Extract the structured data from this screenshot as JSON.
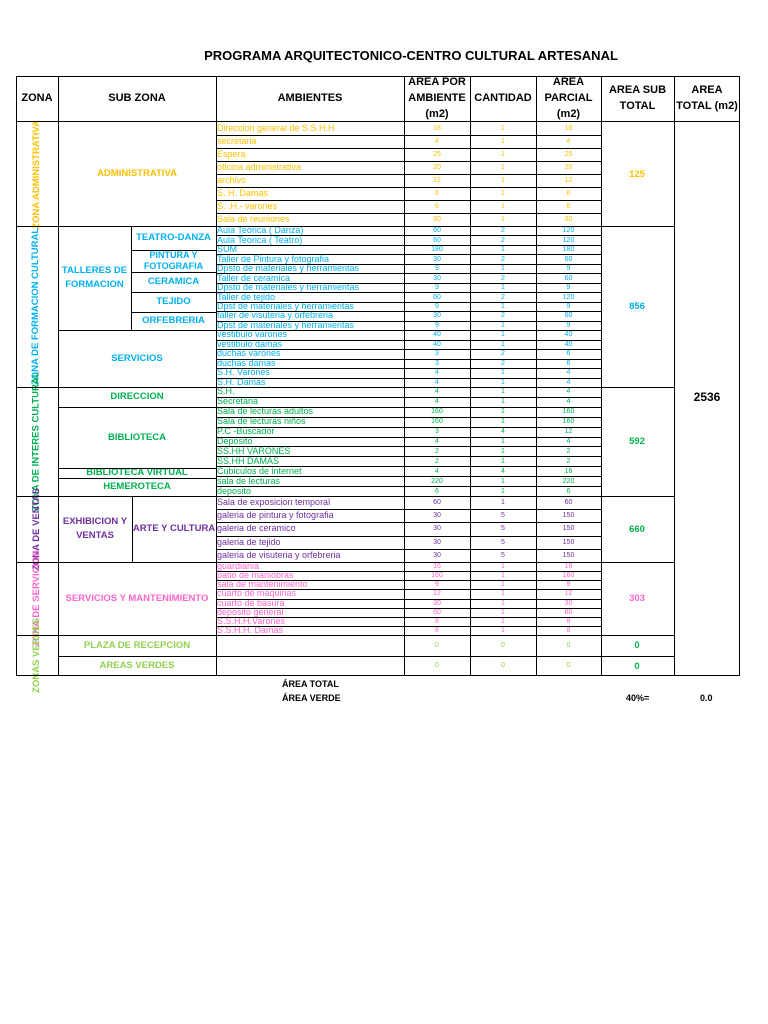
{
  "title": "PROGRAMA ARQUITECTONICO-CENTRO CULTURAL ARTESANAL",
  "headers": {
    "zona": "ZONA",
    "sub_zona": "SUB ZONA",
    "ambientes": "AMBIENTES",
    "area_por_ambiente": "AREA POR AMBIENTE (m2)",
    "cantidad": "CANTIDAD",
    "area_parcial": "AREA PARCIAL (m2)",
    "area_sub_total": "AREA SUB TOTAL",
    "area_total": "AREA TOTAL (m2)"
  },
  "zones": [
    {
      "label": "ZONA ADMINISTRATIVA",
      "color": "#ffc000",
      "subzones": [
        {
          "label": "ADMINISTRATIVA",
          "rows": 8
        }
      ],
      "subtotal": "125",
      "rows": [
        [
          "Direccion general de S.S.H.H",
          "18",
          "1",
          "18"
        ],
        [
          "secretaria",
          "4",
          "1",
          "4"
        ],
        [
          "Espera",
          "25",
          "1",
          "25"
        ],
        [
          " oficina administrativa",
          "20",
          "1",
          "20"
        ],
        [
          "archivo",
          "12",
          "1",
          "12"
        ],
        [
          "S. H. Damas",
          "6",
          "1",
          "6"
        ],
        [
          "S. .H.- varones",
          "6",
          "1",
          "6"
        ],
        [
          "Sala de reuniones",
          "30",
          "1",
          "30"
        ]
      ]
    },
    {
      "label": "ZONA DE FORMACION CULTURAL",
      "color": "#00b0f0",
      "subzones": [],
      "subtotal": "856",
      "rows": [
        [
          "Aula Teorica ( Danza)",
          "60",
          "2",
          "120"
        ],
        [
          "Aula Teorica ( Teatro)",
          "60",
          "2",
          "120"
        ],
        [
          "SUM",
          "180",
          "1",
          "180"
        ],
        [
          "Taller de Pintura y fotografia",
          "30",
          "2",
          "60"
        ],
        [
          "Dpsto de materiales y herramientas",
          "9",
          "1",
          "9"
        ],
        [
          "Taller de ceramica",
          "30",
          "2",
          "60"
        ],
        [
          "Dpsto de materiales y herramientas",
          "9",
          "1",
          "9"
        ],
        [
          "Taller de tejido",
          "60",
          "2",
          "120"
        ],
        [
          "Dpst de materiales y herramientas",
          "9",
          "1",
          "9"
        ],
        [
          "taller de visuteria y orfebreria",
          "30",
          "2",
          "60"
        ],
        [
          "Dpst de materiales y herramientas",
          "9",
          "1",
          "9"
        ],
        [
          "vestibulo varones",
          "40",
          "1",
          "40"
        ],
        [
          "vestibulo damas",
          "40",
          "1",
          "40"
        ],
        [
          "duchas  varones",
          "3",
          "2",
          "6"
        ],
        [
          "duchas damas",
          "3",
          "2",
          "6"
        ],
        [
          "S.H. Varones",
          "4",
          "1",
          "4"
        ],
        [
          "S.H. Damas",
          "4",
          "1",
          "4"
        ]
      ]
    },
    {
      "label": "ZONA DE INTERES CULTURAL",
      "color": "#00b050",
      "subzones": [],
      "subtotal": "592",
      "rows": [
        [
          " S.H.",
          "4",
          "1",
          "4"
        ],
        [
          "Secretaria",
          "4",
          "1",
          "4"
        ],
        [
          "Sala de lecturas adultos",
          "160",
          "1",
          "160"
        ],
        [
          "Sala de lecturas niños",
          "160",
          "1",
          "160"
        ],
        [
          "P.C -Buscador",
          "3",
          "4",
          "12"
        ],
        [
          "Deposito",
          "4",
          "1",
          "4"
        ],
        [
          "SS.HH VARONES",
          "2",
          "1",
          "2"
        ],
        [
          "SS.HH DAMAS",
          "2",
          "1",
          "2"
        ],
        [
          "Cubiculos de internet",
          "4",
          "4",
          "16"
        ],
        [
          "sala de lecturas",
          "220",
          "1",
          "220"
        ],
        [
          "deposito",
          "6",
          "1",
          "6"
        ]
      ]
    },
    {
      "label": "ZONA DE VENTAS",
      "color": "#7030a0",
      "subzones": [],
      "subtotal": "660",
      "rows": [
        [
          "Sala de exposicion temporal",
          "60",
          "1",
          "60"
        ],
        [
          "galeria de pintura y fotografia",
          "30",
          "5",
          "150"
        ],
        [
          "galeria de ceramico",
          "30",
          "5",
          "150"
        ],
        [
          "galeria de tejido",
          "30",
          "5",
          "150"
        ],
        [
          "galeria de visuteria y orfebreria",
          "30",
          "5",
          "150"
        ]
      ]
    },
    {
      "label": "ZONA DE SERVICIOS",
      "color": "#ff66cc",
      "subzones": [],
      "subtotal": "303",
      "rows": [
        [
          "guardiania",
          "16",
          "1",
          "16"
        ],
        [
          "patio de maniobras",
          "160",
          "1",
          "160"
        ],
        [
          "sala de mantenimiento",
          "9",
          "1",
          "9"
        ],
        [
          "cuarto de maquinas",
          "12",
          "1",
          "12"
        ],
        [
          "cuarto de basura",
          "30",
          "1",
          "30"
        ],
        [
          "deposito general",
          "60",
          "1",
          "60"
        ],
        [
          "S.S.H.H.Varones",
          "8",
          "1",
          "8"
        ],
        [
          "S.S.H.H. Damas",
          "8",
          "1",
          "8"
        ]
      ]
    },
    {
      "label": "ZONAS VERDES",
      "color": "#92d050",
      "subzones": [],
      "subtotal": "0",
      "subtotal2": "0",
      "rows": [
        [
          "",
          "0",
          "0",
          "0"
        ],
        [
          "",
          "0",
          "0",
          "0"
        ]
      ]
    }
  ],
  "subzone_labels": {
    "administrativa": "ADMINISTRATIVA",
    "talleres": "TALLERES DE FORMACION",
    "teatro_danza": "TEATRO-DANZA",
    "pintura": "PINTURA Y FOTOGRAFIA",
    "ceramica": "CERAMICA",
    "tejido": "TEJIDO",
    "orfebreria": "ORFEBRERIA",
    "servicios": "SERVICIOS",
    "direccion": "DIRECCION",
    "biblioteca": "BIBLIOTECA",
    "biblioteca_virtual": "BIBLIOTECA VIRTUAL",
    "hemeroteca": "HEMEROTECA",
    "exhibicion": "EXHIBICION Y VENTAS",
    "arte_cultura": "ARTE Y CULTURA",
    "serv_mant": "SERVICIOS Y MANTENIMIENTO",
    "plaza": "PLAZA DE RECEPCION",
    "areas_verdes": "AREAS VERDES"
  },
  "grand_total": "2536",
  "footer": {
    "area_total": "ÁREA TOTAL",
    "area_verde": "ÁREA VERDE",
    "percent": "40%=",
    "value": "0.0"
  }
}
